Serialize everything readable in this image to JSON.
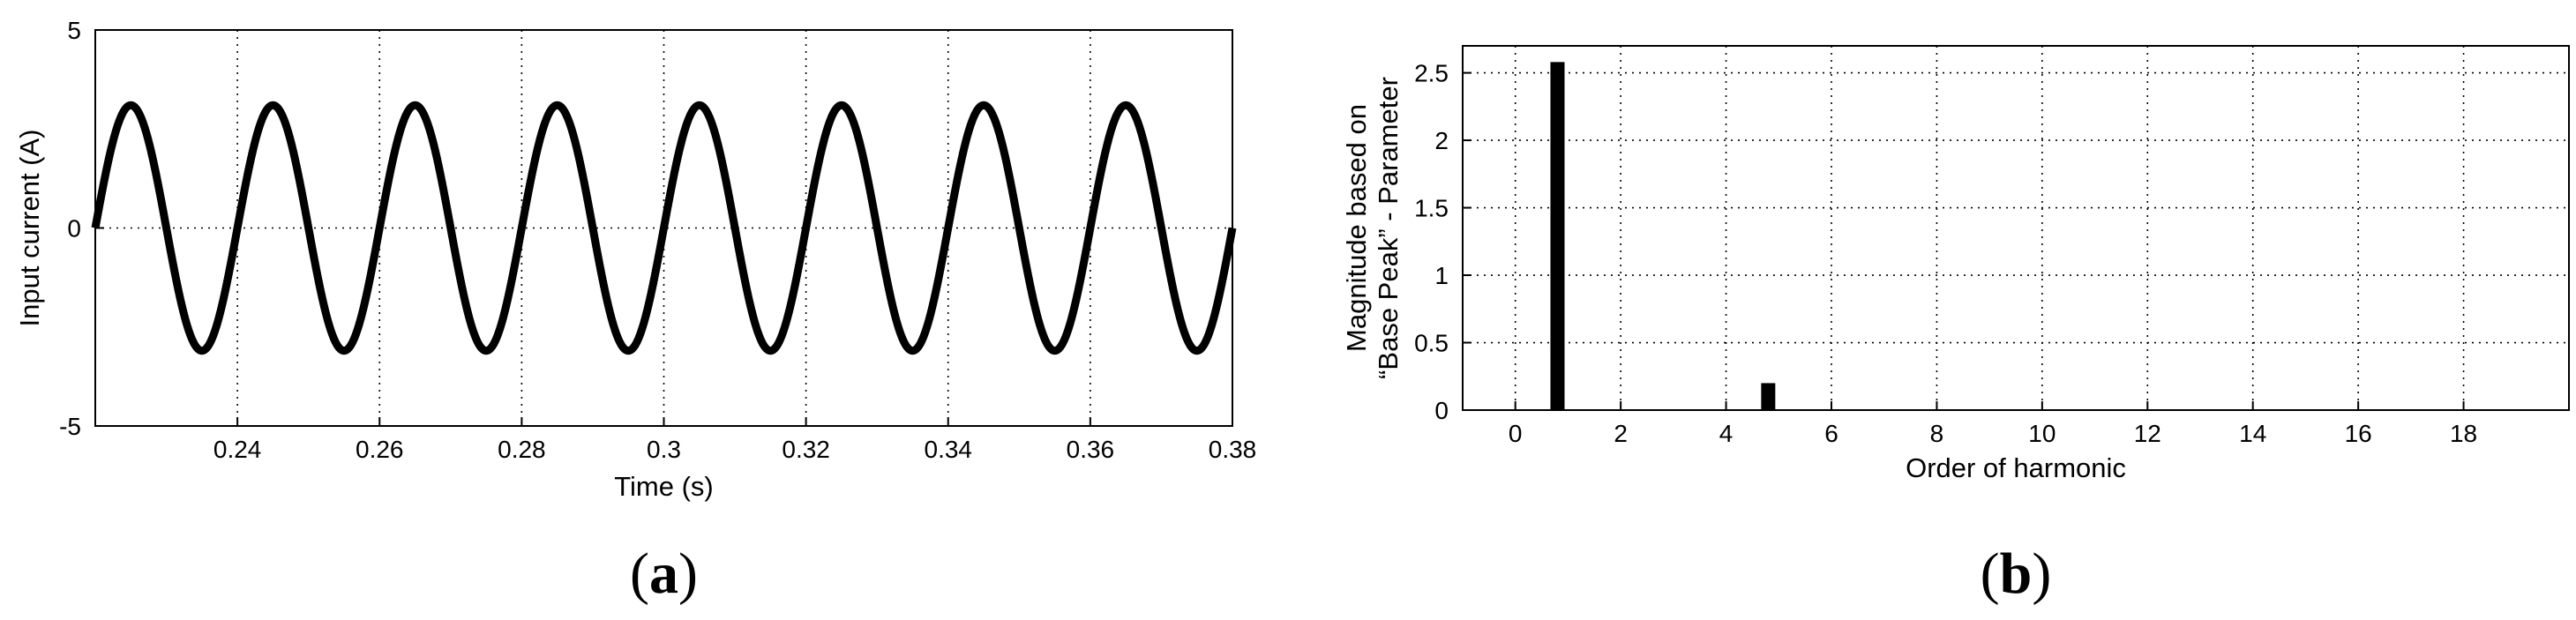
{
  "chart_data": [
    {
      "type": "line",
      "panel_label": "a",
      "xlabel": "Time (s)",
      "ylabel": "Input current (A)",
      "xlim": [
        0.22,
        0.38
      ],
      "ylim": [
        -5,
        5
      ],
      "xticks": [
        0.24,
        0.26,
        0.28,
        0.3,
        0.32,
        0.34,
        0.36,
        0.38
      ],
      "xtick_labels": [
        "0.24",
        "0.26",
        "0.28",
        "0.3",
        "0.32",
        "0.34",
        "0.36",
        "0.38"
      ],
      "yticks": [
        -5,
        0,
        5
      ],
      "ytick_labels": [
        "-5",
        "0",
        "5"
      ],
      "grid": true,
      "series": [
        {
          "amplitude": 3.1,
          "frequency_hz": 50,
          "phase_zero_s": 0.22,
          "x_start": 0.22,
          "x_end": 0.38
        }
      ]
    },
    {
      "type": "bar",
      "panel_label": "b",
      "xlabel": "Order of harmonic",
      "ylabel_line1": "Magnitude based on",
      "ylabel_line2": "“Base Peak” - Parameter",
      "xlim": [
        -1,
        20
      ],
      "ylim": [
        0,
        2.7
      ],
      "xticks": [
        0,
        2,
        4,
        6,
        8,
        10,
        12,
        14,
        16,
        18
      ],
      "xtick_labels": [
        "0",
        "2",
        "4",
        "6",
        "8",
        "10",
        "12",
        "14",
        "16",
        "18"
      ],
      "yticks": [
        0,
        0.5,
        1,
        1.5,
        2,
        2.5
      ],
      "ytick_labels": [
        "0",
        "0.5",
        "1",
        "1.5",
        "2",
        "2.5"
      ],
      "grid": true,
      "bars": [
        {
          "x": 0.8,
          "value": 2.58
        },
        {
          "x": 4.8,
          "value": 0.2
        }
      ]
    }
  ]
}
